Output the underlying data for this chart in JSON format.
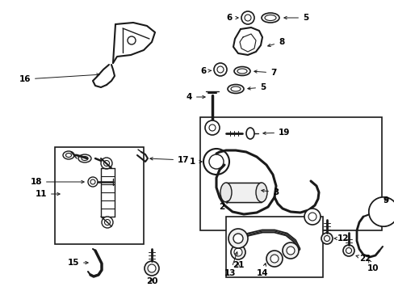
{
  "bg_color": "#ffffff",
  "line_color": "#1a1a1a",
  "text_color": "#000000",
  "font_size": 7.5,
  "fig_width": 4.89,
  "fig_height": 3.6,
  "dpi": 100
}
